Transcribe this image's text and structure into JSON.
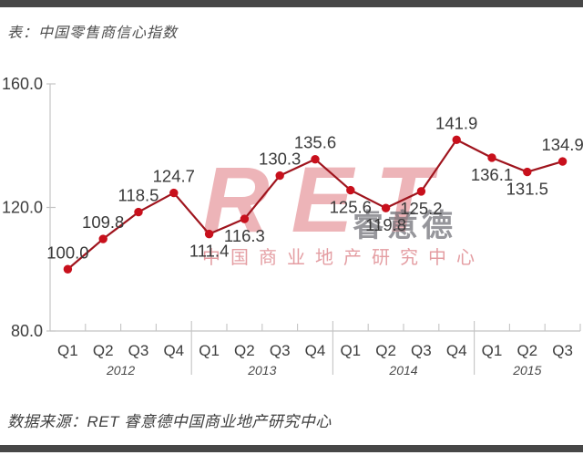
{
  "header": {
    "title": "表：中国零售商信心指数"
  },
  "footer": {
    "source": "数据来源：RET 睿意德中国商业地产研究中心"
  },
  "watermark": {
    "logo": "RET",
    "logo_cn": "睿意德",
    "subtitle": "中国商业地产研究中心"
  },
  "colors": {
    "accent_line": "#9f141d",
    "accent_point": "#c8101c",
    "axis": "#c4c4c4",
    "text": "#3d3d3d",
    "frame_bar": "#474747",
    "watermark_red": "#c71c27"
  },
  "chart_data": {
    "type": "line",
    "title": "中国零售商信心指数",
    "x": [
      "2012-Q1",
      "2012-Q2",
      "2012-Q3",
      "2012-Q4",
      "2013-Q1",
      "2013-Q2",
      "2013-Q3",
      "2013-Q4",
      "2014-Q1",
      "2014-Q2",
      "2014-Q3",
      "2014-Q4",
      "2015-Q1",
      "2015-Q2",
      "2015-Q3"
    ],
    "quarter_labels": [
      "Q1",
      "Q2",
      "Q3",
      "Q4",
      "Q1",
      "Q2",
      "Q3",
      "Q4",
      "Q1",
      "Q2",
      "Q3",
      "Q4",
      "Q1",
      "Q2",
      "Q3"
    ],
    "years": [
      {
        "label": "2012",
        "span": 4
      },
      {
        "label": "2013",
        "span": 4
      },
      {
        "label": "2014",
        "span": 4
      },
      {
        "label": "2015",
        "span": 3
      }
    ],
    "values": [
      100.0,
      109.8,
      118.5,
      124.7,
      111.4,
      116.3,
      130.3,
      135.6,
      125.6,
      119.8,
      125.2,
      141.9,
      136.1,
      131.5,
      134.9
    ],
    "value_label_side": [
      "above",
      "above",
      "above",
      "above",
      "below",
      "below",
      "above",
      "above",
      "below",
      "below",
      "below",
      "above",
      "below",
      "below",
      "above"
    ],
    "ylabel": "",
    "xlabel": "",
    "ylim": [
      80,
      160
    ],
    "yticks": [
      160.0,
      120.0,
      80.0
    ],
    "grid": false,
    "legend": false
  }
}
